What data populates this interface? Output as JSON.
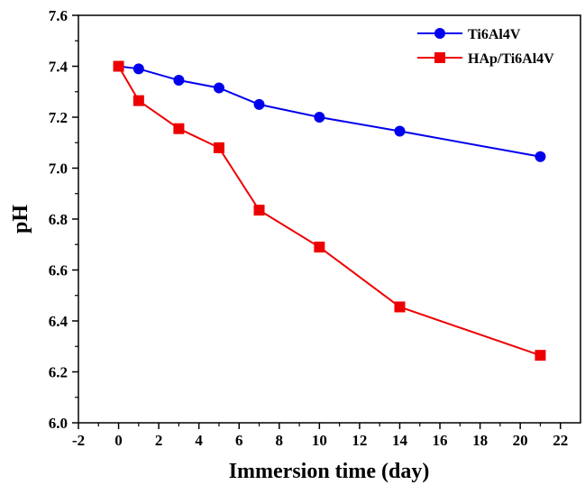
{
  "chart_data": {
    "type": "line",
    "xlabel": "Immersion time (day)",
    "ylabel": "pH",
    "xlim": [
      -2,
      23
    ],
    "ylim": [
      6.0,
      7.6
    ],
    "x_ticks": [
      "-2",
      "0",
      "2",
      "4",
      "6",
      "8",
      "10",
      "12",
      "14",
      "16",
      "18",
      "20",
      "22"
    ],
    "y_ticks": [
      "6.0",
      "6.2",
      "6.4",
      "6.6",
      "6.8",
      "7.0",
      "7.2",
      "7.4",
      "7.6"
    ],
    "x": [
      0,
      1,
      3,
      5,
      7,
      10,
      14,
      21
    ],
    "series": [
      {
        "name": "Ti6Al4V",
        "color": "#0000ee",
        "marker": "circle",
        "values": [
          7.4,
          7.39,
          7.345,
          7.315,
          7.25,
          7.2,
          7.145,
          7.045
        ]
      },
      {
        "name": "HAp/Ti6Al4V",
        "color": "#ee0000",
        "marker": "square",
        "values": [
          7.4,
          7.265,
          7.155,
          7.08,
          6.835,
          6.69,
          6.455,
          6.265
        ]
      }
    ],
    "legend_position": "top-right",
    "grid": false
  }
}
